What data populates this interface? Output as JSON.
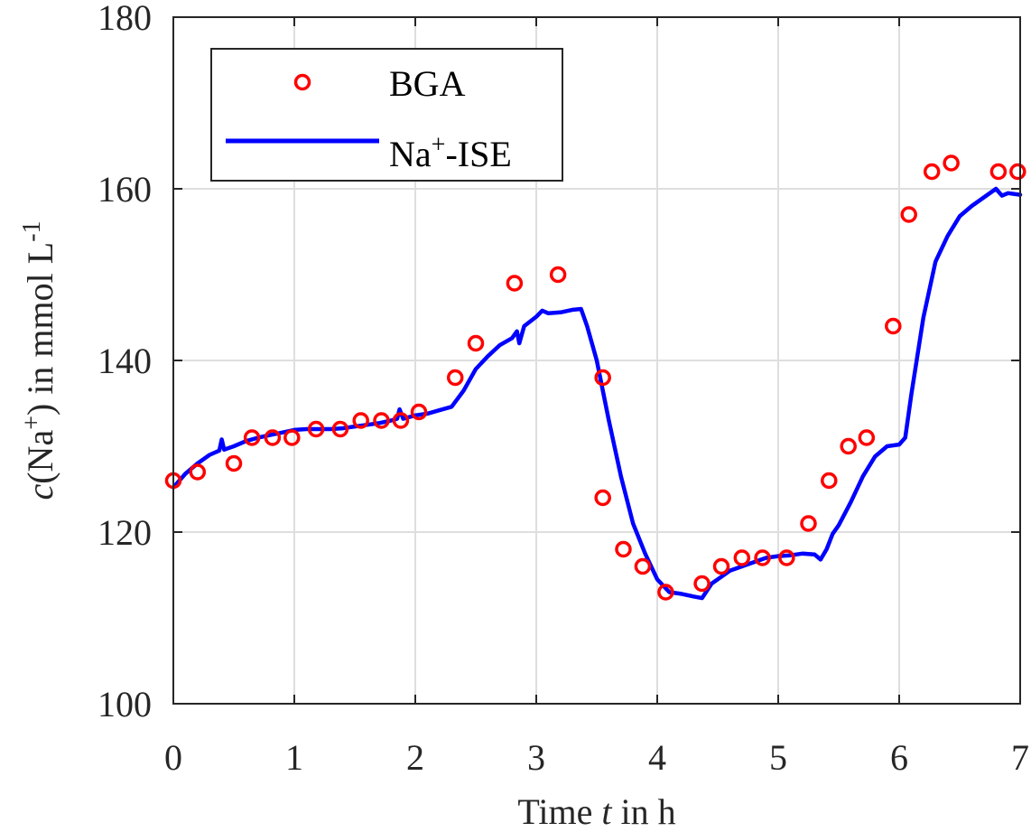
{
  "chart_data": {
    "type": "line",
    "xlabel": {
      "pre": "Time ",
      "var": "t",
      "post": " in h"
    },
    "ylabel": {
      "var": "c",
      "pre": "(Na",
      "sup": "+",
      "mid": ") in mmol L",
      "sup2": "-1"
    },
    "xlim": [
      0,
      7
    ],
    "ylim": [
      100,
      180
    ],
    "xticks": [
      0,
      1,
      2,
      3,
      4,
      5,
      6,
      7
    ],
    "yticks": [
      100,
      120,
      140,
      160,
      180
    ],
    "grid": true,
    "legend_position": "top-left",
    "colors": {
      "bga": "#ff0000",
      "ise": "#0000ff",
      "grid": "#dedede",
      "axis": "#262626"
    },
    "series": [
      {
        "name": "BGA",
        "type": "scatter",
        "marker": "circle",
        "x": [
          0.0,
          0.2,
          0.5,
          0.65,
          0.82,
          0.98,
          1.18,
          1.38,
          1.55,
          1.72,
          1.88,
          2.03,
          2.33,
          2.5,
          2.82,
          3.18,
          3.55,
          3.55,
          3.72,
          3.88,
          4.07,
          4.37,
          4.53,
          4.7,
          4.87,
          5.07,
          5.25,
          5.42,
          5.58,
          5.73,
          5.95,
          6.08,
          6.27,
          6.43,
          6.82,
          6.98
        ],
        "y": [
          126,
          127,
          128,
          131,
          131,
          131,
          132,
          132,
          133,
          133,
          133,
          134,
          138,
          142,
          149,
          150,
          138,
          124,
          118,
          116,
          113,
          114,
          116,
          117,
          117,
          117,
          121,
          126,
          130,
          131,
          144,
          157,
          162,
          163,
          162,
          162
        ]
      },
      {
        "name": {
          "pre": "Na",
          "sup": "+",
          "post": "-ISE"
        },
        "type": "line",
        "x": [
          0.0,
          0.1,
          0.2,
          0.3,
          0.38,
          0.4,
          0.42,
          0.5,
          0.6,
          0.7,
          0.8,
          0.9,
          1.0,
          1.1,
          1.2,
          1.3,
          1.4,
          1.5,
          1.6,
          1.7,
          1.8,
          1.85,
          1.87,
          1.9,
          2.0,
          2.1,
          2.2,
          2.3,
          2.4,
          2.5,
          2.6,
          2.7,
          2.8,
          2.84,
          2.86,
          2.9,
          3.0,
          3.05,
          3.1,
          3.2,
          3.3,
          3.37,
          3.42,
          3.5,
          3.6,
          3.7,
          3.8,
          3.9,
          4.0,
          4.1,
          4.2,
          4.3,
          4.37,
          4.45,
          4.5,
          4.6,
          4.7,
          4.8,
          4.9,
          5.0,
          5.1,
          5.2,
          5.3,
          5.35,
          5.4,
          5.45,
          5.5,
          5.6,
          5.7,
          5.8,
          5.9,
          6.0,
          6.05,
          6.1,
          6.2,
          6.3,
          6.4,
          6.5,
          6.6,
          6.7,
          6.8,
          6.85,
          6.9,
          7.0
        ],
        "y": [
          125.2,
          126.8,
          128.0,
          129.0,
          129.5,
          130.8,
          129.6,
          130.0,
          130.6,
          131.0,
          131.3,
          131.6,
          131.9,
          132.0,
          132.0,
          132.0,
          132.1,
          132.3,
          132.5,
          132.7,
          133.0,
          133.2,
          134.3,
          133.2,
          133.6,
          133.8,
          134.2,
          134.6,
          136.5,
          139.0,
          140.5,
          141.8,
          142.6,
          143.4,
          142.0,
          144.0,
          145.1,
          145.8,
          145.5,
          145.6,
          145.9,
          146.0,
          144.0,
          140.0,
          133.0,
          126.5,
          121.0,
          117.5,
          114.5,
          113.0,
          112.8,
          112.5,
          112.3,
          114.0,
          114.5,
          115.5,
          116.0,
          116.5,
          117.0,
          117.2,
          117.3,
          117.5,
          117.4,
          116.8,
          118.0,
          119.8,
          120.8,
          123.5,
          126.5,
          128.8,
          130.0,
          130.2,
          131.0,
          136.0,
          145.0,
          151.5,
          154.5,
          156.8,
          158.0,
          159.0,
          160.0,
          159.2,
          159.5,
          159.3
        ]
      }
    ]
  }
}
